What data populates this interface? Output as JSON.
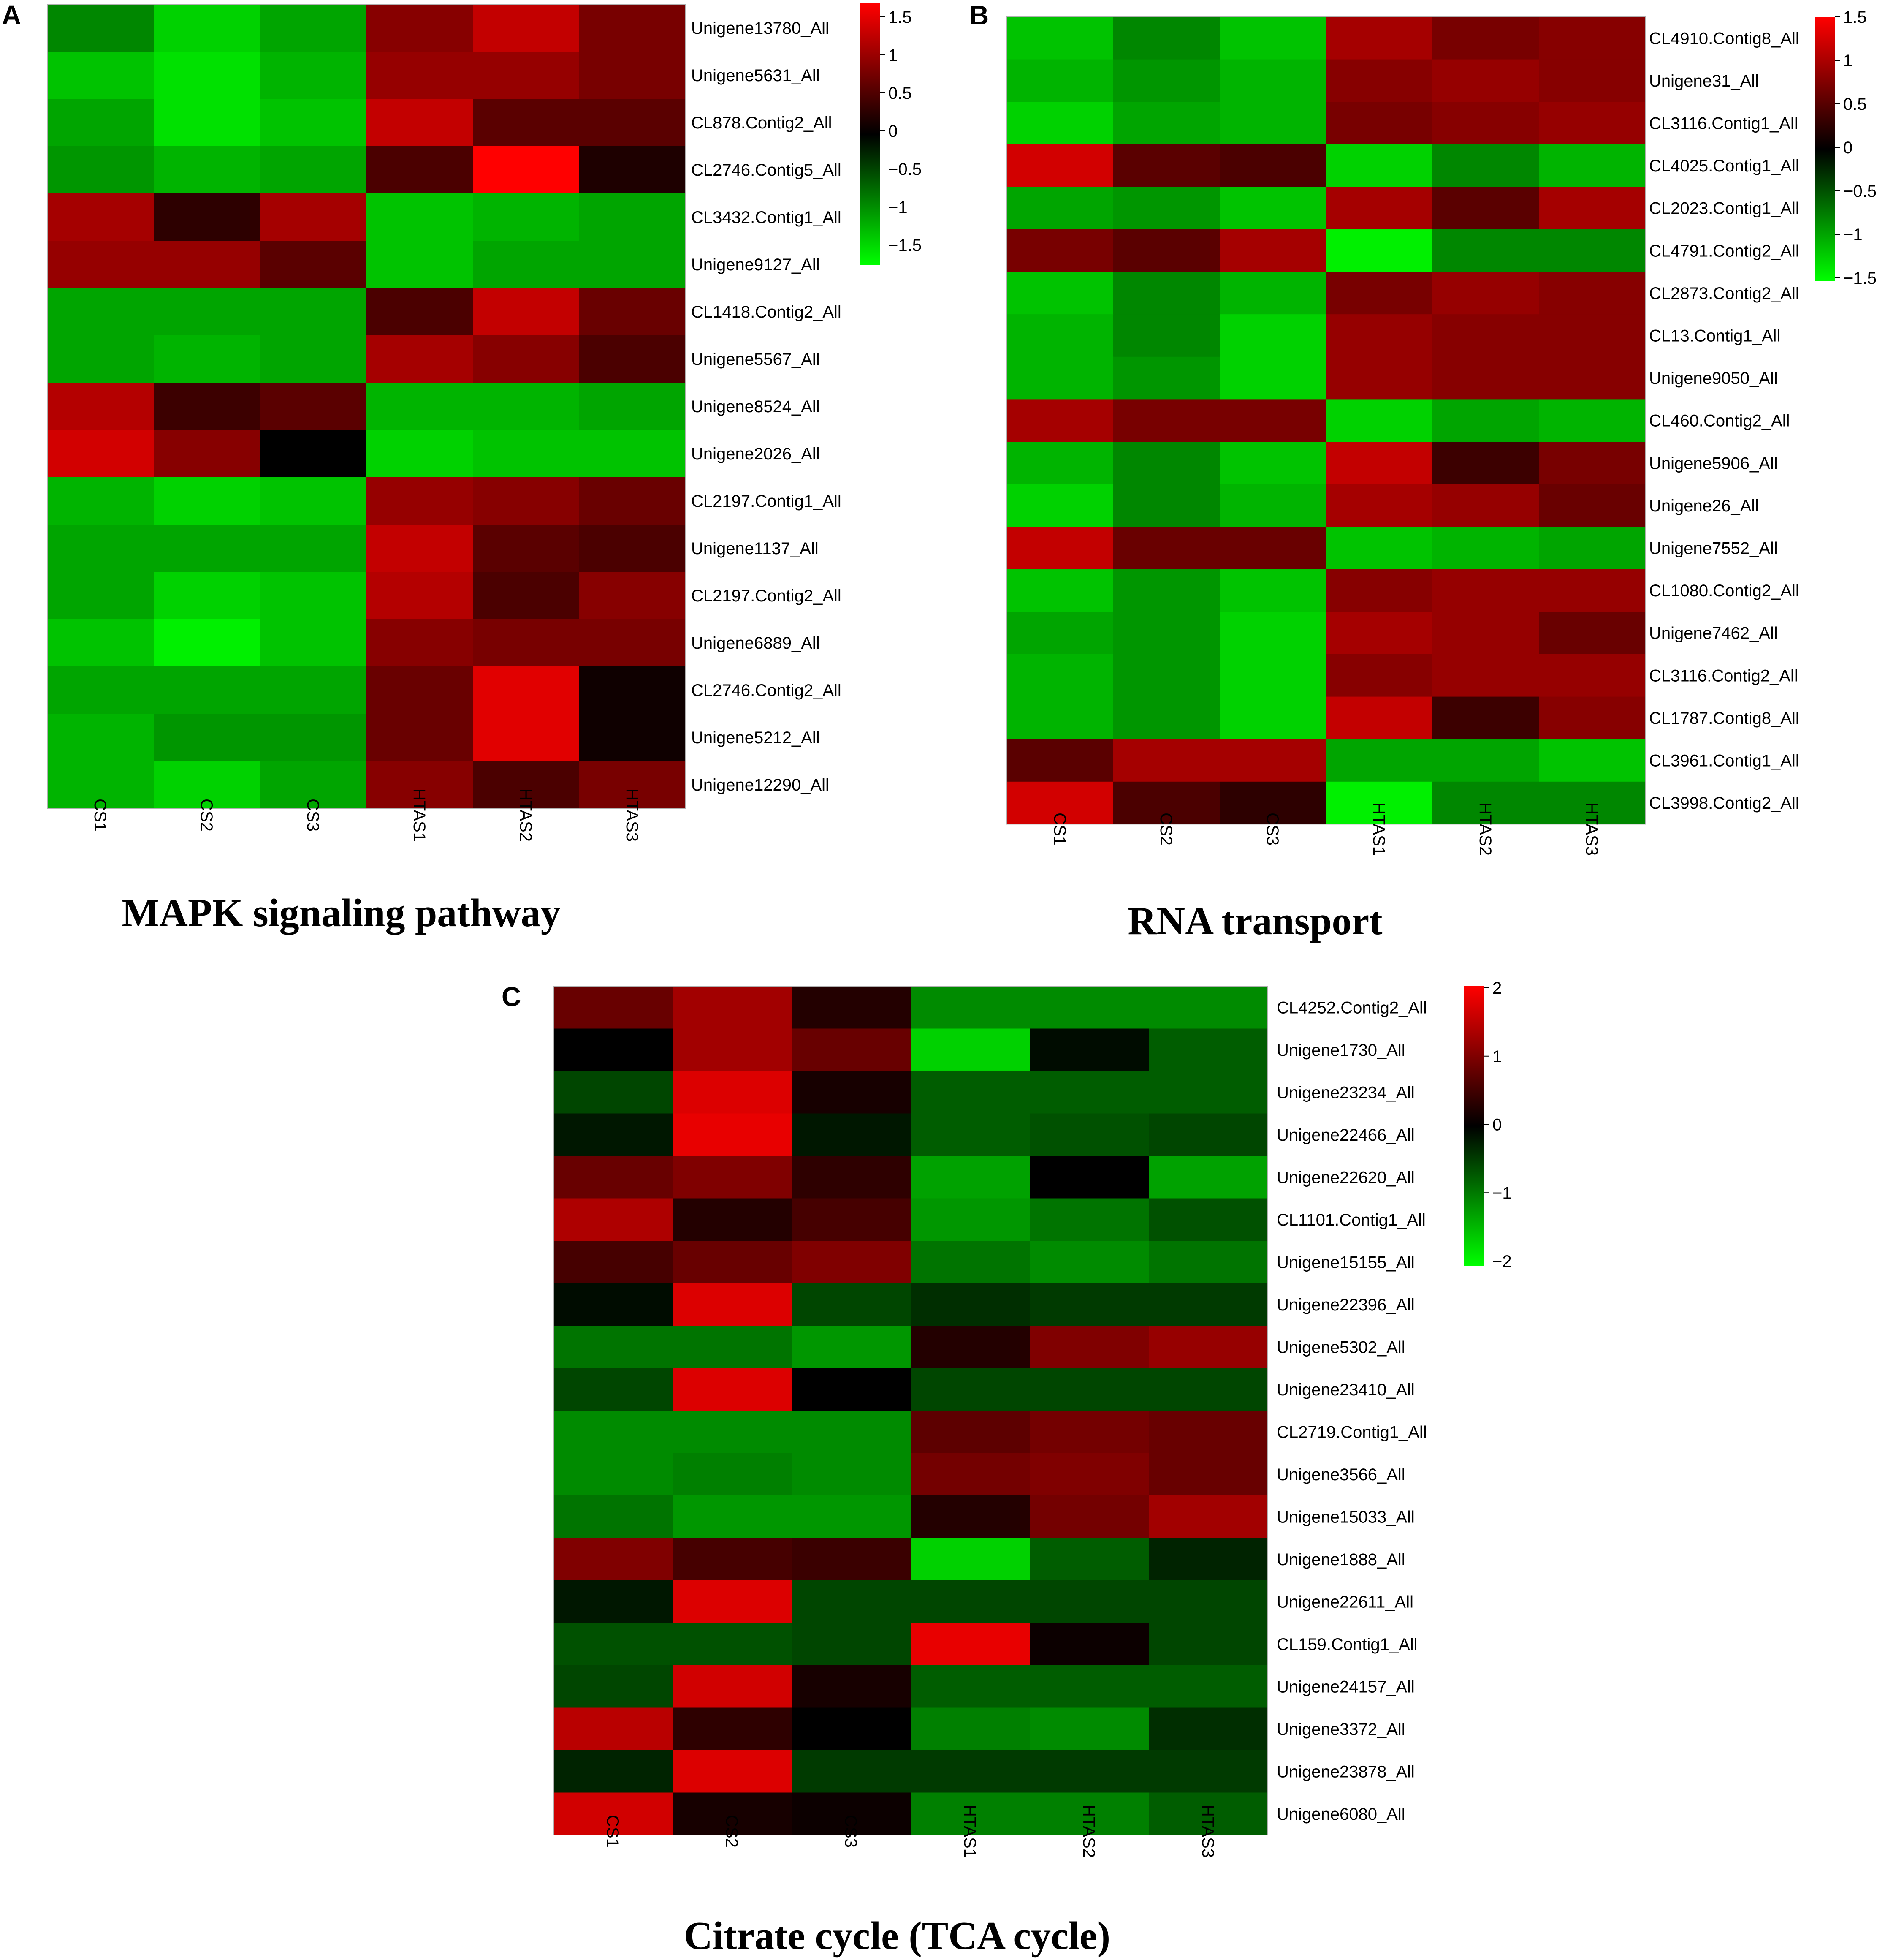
{
  "palette": {
    "low": "#00ff00",
    "mid": "#000000",
    "high": "#ff0000"
  },
  "chart_data": [
    {
      "type": "heatmap",
      "panel_label": "A",
      "title": "MAPK signaling pathway",
      "columns": [
        "CS1",
        "CS2",
        "CS3",
        "HTAS1",
        "HTAS2",
        "HTAS3"
      ],
      "rows": [
        "Unigene13780_All",
        "Unigene5631_All",
        "CL878.Contig2_All",
        "CL2746.Contig5_All",
        "CL3432.Contig1_All",
        "Unigene9127_All",
        "CL1418.Contig2_All",
        "Unigene5567_All",
        "Unigene8524_All",
        "Unigene2026_All",
        "CL2197.Contig1_All",
        "Unigene1137_All",
        "CL2197.Contig2_All",
        "Unigene6889_All",
        "CL2746.Contig2_All",
        "Unigene5212_All",
        "Unigene12290_All"
      ],
      "values": [
        [
          -0.9,
          -1.4,
          -1.1,
          0.9,
          1.3,
          0.8
        ],
        [
          -1.3,
          -1.5,
          -1.2,
          1.0,
          1.0,
          0.8
        ],
        [
          -1.1,
          -1.5,
          -1.3,
          1.3,
          0.6,
          0.6
        ],
        [
          -1.0,
          -1.2,
          -1.1,
          0.5,
          1.7,
          0.2
        ],
        [
          1.1,
          0.3,
          1.1,
          -1.3,
          -1.2,
          -1.1
        ],
        [
          1.0,
          1.0,
          0.6,
          -1.3,
          -1.1,
          -1.1
        ],
        [
          -1.1,
          -1.1,
          -1.1,
          0.5,
          1.3,
          0.7
        ],
        [
          -1.1,
          -1.2,
          -1.1,
          1.1,
          0.9,
          0.5
        ],
        [
          1.2,
          0.4,
          0.6,
          -1.2,
          -1.2,
          -1.1
        ],
        [
          1.4,
          0.9,
          0.0,
          -1.4,
          -1.3,
          -1.3
        ],
        [
          -1.2,
          -1.4,
          -1.3,
          1.0,
          0.9,
          0.7
        ],
        [
          -1.1,
          -1.1,
          -1.1,
          1.3,
          0.6,
          0.5
        ],
        [
          -1.1,
          -1.4,
          -1.3,
          1.2,
          0.5,
          0.9
        ],
        [
          -1.3,
          -1.6,
          -1.3,
          0.9,
          0.8,
          0.8
        ],
        [
          -1.1,
          -1.1,
          -1.1,
          0.7,
          1.5,
          0.1
        ],
        [
          -1.2,
          -1.0,
          -1.0,
          0.7,
          1.5,
          0.1
        ],
        [
          -1.2,
          -1.4,
          -1.1,
          0.9,
          0.5,
          0.8
        ]
      ],
      "colorbar": {
        "ticks": [
          "1.5",
          "1",
          "0.5",
          "0",
          "−0.5",
          "−1",
          "−1.5"
        ],
        "range": [
          -1.7,
          1.7
        ]
      }
    },
    {
      "type": "heatmap",
      "panel_label": "B",
      "title": "RNA transport",
      "columns": [
        "CS1",
        "CS2",
        "CS3",
        "HTAS1",
        "HTAS2",
        "HTAS3"
      ],
      "rows": [
        "CL4910.Contig8_All",
        "Unigene31_All",
        "CL3116.Contig1_All",
        "CL4025.Contig1_All",
        "CL2023.Contig1_All",
        "CL4791.Contig2_All",
        "CL2873.Contig2_All",
        "CL13.Contig1_All",
        "Unigene9050_All",
        "CL460.Contig2_All",
        "Unigene5906_All",
        "Unigene26_All",
        "Unigene7552_All",
        "CL1080.Contig2_All",
        "Unigene7462_All",
        "CL3116.Contig2_All",
        "CL1787.Contig8_All",
        "CL3961.Contig1_All",
        "CL3998.Contig2_All"
      ],
      "values": [
        [
          -1.3,
          -0.9,
          -1.3,
          1.1,
          0.8,
          0.9
        ],
        [
          -1.2,
          -1.0,
          -1.2,
          0.9,
          1.0,
          0.9
        ],
        [
          -1.4,
          -1.1,
          -1.2,
          0.8,
          0.9,
          1.0
        ],
        [
          1.4,
          0.6,
          0.5,
          -1.4,
          -0.9,
          -1.2
        ],
        [
          -1.1,
          -1.0,
          -1.3,
          1.1,
          0.6,
          1.1
        ],
        [
          0.8,
          0.6,
          1.1,
          -1.6,
          -0.9,
          -0.9
        ],
        [
          -1.3,
          -0.9,
          -1.2,
          0.8,
          1.0,
          0.9
        ],
        [
          -1.2,
          -0.9,
          -1.4,
          1.0,
          0.9,
          0.9
        ],
        [
          -1.2,
          -1.0,
          -1.4,
          1.0,
          0.9,
          0.9
        ],
        [
          1.1,
          0.8,
          0.8,
          -1.4,
          -1.1,
          -1.2
        ],
        [
          -1.2,
          -0.9,
          -1.3,
          1.3,
          0.4,
          0.8
        ],
        [
          -1.4,
          -0.9,
          -1.2,
          1.1,
          1.0,
          0.7
        ],
        [
          1.3,
          0.7,
          0.7,
          -1.3,
          -1.2,
          -1.1
        ],
        [
          -1.3,
          -1.0,
          -1.3,
          0.9,
          1.0,
          1.0
        ],
        [
          -1.1,
          -1.0,
          -1.4,
          1.1,
          1.0,
          0.7
        ],
        [
          -1.2,
          -1.0,
          -1.4,
          0.9,
          1.0,
          1.0
        ],
        [
          -1.2,
          -1.0,
          -1.4,
          1.3,
          0.4,
          0.9
        ],
        [
          0.6,
          1.1,
          1.1,
          -1.1,
          -1.1,
          -1.3
        ],
        [
          1.4,
          0.5,
          0.3,
          -1.6,
          -0.9,
          -0.9
        ]
      ],
      "colorbar": {
        "ticks": [
          "1.5",
          "1",
          "0.5",
          "0",
          "−0.5",
          "−1",
          "−1.5"
        ],
        "range": [
          -1.7,
          1.7
        ]
      }
    },
    {
      "type": "heatmap",
      "panel_label": "C",
      "title": "Citrate cycle (TCA cycle)",
      "columns": [
        "CS1",
        "CS2",
        "CS3",
        "HTAS1",
        "HTAS2",
        "HTAS3"
      ],
      "rows": [
        "CL4252.Contig2_All",
        "Unigene1730_All",
        "Unigene23234_All",
        "Unigene22466_All",
        "Unigene22620_All",
        "CL1101.Contig1_All",
        "Unigene15155_All",
        "Unigene22396_All",
        "Unigene5302_All",
        "Unigene23410_All",
        "CL2719.Contig1_All",
        "Unigene3566_All",
        "Unigene15033_All",
        "Unigene1888_All",
        "Unigene22611_All",
        "CL159.Contig1_All",
        "Unigene24157_All",
        "Unigene3372_All",
        "Unigene23878_All",
        "Unigene6080_All"
      ],
      "values": [
        [
          0.9,
          1.4,
          0.3,
          -1.2,
          -1.2,
          -1.2
        ],
        [
          0.0,
          1.4,
          0.9,
          -1.8,
          -0.1,
          -0.8
        ],
        [
          -0.6,
          1.9,
          0.2,
          -0.8,
          -0.8,
          -0.8
        ],
        [
          -0.2,
          2.0,
          -0.2,
          -0.8,
          -0.7,
          -0.6
        ],
        [
          0.9,
          1.1,
          0.4,
          -1.4,
          0.0,
          -1.4
        ],
        [
          1.5,
          0.3,
          0.6,
          -1.3,
          -1.0,
          -0.7
        ],
        [
          0.6,
          0.9,
          1.1,
          -1.0,
          -1.2,
          -1.0
        ],
        [
          -0.1,
          1.9,
          -0.6,
          -0.4,
          -0.5,
          -0.5
        ],
        [
          -1.0,
          -1.0,
          -1.3,
          0.3,
          1.1,
          1.3
        ],
        [
          -0.6,
          1.9,
          0.0,
          -0.6,
          -0.6,
          -0.6
        ],
        [
          -1.2,
          -1.2,
          -1.2,
          0.8,
          1.0,
          0.9
        ],
        [
          -1.2,
          -1.1,
          -1.2,
          1.0,
          1.1,
          0.9
        ],
        [
          -1.0,
          -1.3,
          -1.3,
          0.3,
          1.0,
          1.4
        ],
        [
          1.1,
          0.6,
          0.5,
          -1.8,
          -0.8,
          -0.3
        ],
        [
          -0.2,
          1.9,
          -0.6,
          -0.6,
          -0.6,
          -0.6
        ],
        [
          -0.7,
          -0.7,
          -0.6,
          2.0,
          0.1,
          -0.6
        ],
        [
          -0.6,
          1.8,
          0.2,
          -0.8,
          -0.8,
          -0.8
        ],
        [
          1.6,
          0.4,
          0.0,
          -1.1,
          -1.2,
          -0.4
        ],
        [
          -0.3,
          1.9,
          -0.5,
          -0.5,
          -0.5,
          -0.5
        ],
        [
          1.8,
          0.2,
          0.1,
          -1.1,
          -1.1,
          -0.8
        ]
      ],
      "colorbar": {
        "ticks": [
          "2",
          "1",
          "0",
          "−1",
          "−2"
        ],
        "range": [
          -2.2,
          2.2
        ]
      }
    }
  ]
}
